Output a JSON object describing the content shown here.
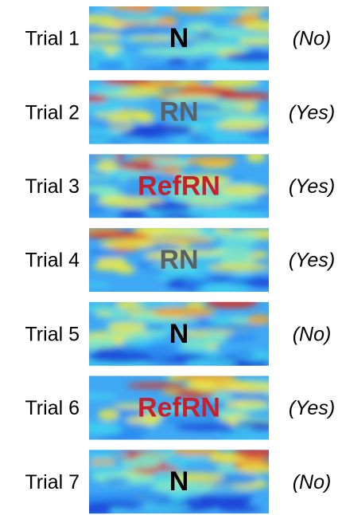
{
  "rows": [
    {
      "label": "Trial 1",
      "stimulus": "N",
      "stimulus_color": "#000000",
      "response": "(No)"
    },
    {
      "label": "Trial 2",
      "stimulus": "RN",
      "stimulus_color": "#586266",
      "response": "(Yes)"
    },
    {
      "label": "Trial 3",
      "stimulus": "RefRN",
      "stimulus_color": "#c8202a",
      "response": "(Yes)"
    },
    {
      "label": "Trial 4",
      "stimulus": "RN",
      "stimulus_color": "#586266",
      "response": "(Yes)"
    },
    {
      "label": "Trial 5",
      "stimulus": "N",
      "stimulus_color": "#000000",
      "response": "(No)"
    },
    {
      "label": "Trial 6",
      "stimulus": "RefRN",
      "stimulus_color": "#c8202a",
      "response": "(Yes)"
    },
    {
      "label": "Trial 7",
      "stimulus": "N",
      "stimulus_color": "#000000",
      "response": "(No)"
    }
  ]
}
